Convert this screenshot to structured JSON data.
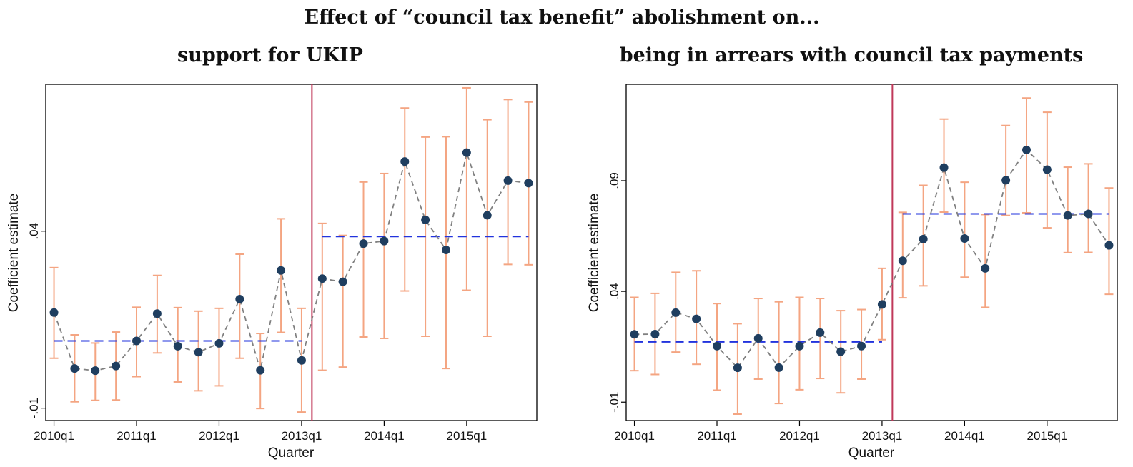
{
  "figure": {
    "title": "Effect of “council tax benefit” abolishment on..."
  },
  "chart_data": [
    {
      "type": "scatter",
      "title": "support for UKIP",
      "xlabel": "Quarter",
      "ylabel": "Coefficient estimate",
      "x_tick_labels": [
        "2010q1",
        "2011q1",
        "2012q1",
        "2013q1",
        "2014q1",
        "2015q1"
      ],
      "x_tick_values": [
        0,
        4,
        8,
        12,
        16,
        20
      ],
      "y_tick_labels": [
        "-.01",
        ".04"
      ],
      "y_tick_values": [
        -0.01,
        0.04
      ],
      "ylim": [
        -0.0135,
        0.0815
      ],
      "xlim": [
        -0.4,
        23.4
      ],
      "policy_line_x": 12.5,
      "colors": {
        "point": "#1f3e5f",
        "ci": "#f4a582",
        "connector": "#808080",
        "mean": "#2233dd",
        "vline": "#c0395a"
      },
      "series": [
        {
          "x": [
            0,
            1,
            2,
            3,
            4,
            5,
            6,
            7,
            8,
            9,
            10,
            11,
            12,
            13,
            14,
            15,
            16,
            17,
            18,
            19,
            20,
            21,
            22,
            23
          ],
          "estimate": [
            0.017,
            0.0012,
            0.0006,
            0.0019,
            0.009,
            0.0167,
            0.0075,
            0.0058,
            0.0083,
            0.0208,
            0.0007,
            0.0289,
            0.0035,
            0.0266,
            0.0257,
            0.0365,
            0.0372,
            0.0597,
            0.0432,
            0.0347,
            0.0622,
            0.0445,
            0.0543,
            0.0536
          ],
          "ci_low": [
            0.0041,
            -0.0082,
            -0.0078,
            -0.0077,
            -0.0011,
            0.0056,
            -0.0026,
            -0.0051,
            -0.0037,
            0.0041,
            -0.0101,
            0.0114,
            -0.0111,
            0.0007,
            0.0016,
            0.0101,
            0.0097,
            0.0231,
            0.0103,
            0.0012,
            0.0233,
            0.0103,
            0.0306,
            0.0305
          ],
          "ci_high": [
            0.0297,
            0.0107,
            0.0084,
            0.0115,
            0.0185,
            0.0275,
            0.0184,
            0.0174,
            0.0182,
            0.0335,
            0.0111,
            0.0435,
            0.0182,
            0.0422,
            0.0388,
            0.0539,
            0.0563,
            0.0748,
            0.0666,
            0.0667,
            0.0805,
            0.0715,
            0.0772,
            0.0765
          ],
          "pre_mean": 0.009,
          "post_mean": 0.0385
        }
      ]
    },
    {
      "type": "scatter",
      "title": "being in arrears with council tax payments",
      "xlabel": "Quarter",
      "ylabel": "Coefficient estimate",
      "x_tick_labels": [
        "2010q1",
        "2011q1",
        "2012q1",
        "2013q1",
        "2014q1",
        "2015q1"
      ],
      "x_tick_values": [
        0,
        4,
        8,
        12,
        16,
        20
      ],
      "y_tick_labels": [
        "-.01",
        ".04",
        ".09"
      ],
      "y_tick_values": [
        -0.01,
        0.04,
        0.09
      ],
      "ylim": [
        -0.0183,
        0.1335
      ],
      "xlim": [
        -0.4,
        23.4
      ],
      "policy_line_x": 12.5,
      "colors": {
        "point": "#1f3e5f",
        "ci": "#f4a582",
        "connector": "#808080",
        "mean": "#2233dd",
        "vline": "#c0395a"
      },
      "series": [
        {
          "x": [
            0,
            1,
            2,
            3,
            4,
            5,
            6,
            7,
            8,
            9,
            10,
            11,
            12,
            13,
            14,
            15,
            16,
            17,
            18,
            19,
            20,
            21,
            22,
            23
          ],
          "estimate": [
            0.0206,
            0.0207,
            0.0304,
            0.0276,
            0.0153,
            0.0055,
            0.0188,
            0.0056,
            0.0153,
            0.0214,
            0.0128,
            0.0153,
            0.0341,
            0.0538,
            0.0636,
            0.0959,
            0.0639,
            0.0504,
            0.0902,
            0.1039,
            0.095,
            0.0743,
            0.075,
            0.0608
          ],
          "ci_low": [
            0.0042,
            0.0025,
            0.0126,
            0.0071,
            -0.0046,
            -0.0154,
            0.0004,
            -0.0106,
            -0.0044,
            0.0007,
            -0.0058,
            0.0004,
            0.0182,
            0.0371,
            0.0425,
            0.0758,
            0.0464,
            0.0328,
            0.0743,
            0.0755,
            0.0687,
            0.0575,
            0.0576,
            0.0387
          ],
          "ci_high": [
            0.0373,
            0.0391,
            0.0486,
            0.0493,
            0.0345,
            0.0254,
            0.0368,
            0.0353,
            0.0373,
            0.0368,
            0.0313,
            0.0318,
            0.0504,
            0.0757,
            0.0879,
            0.1178,
            0.0893,
            0.0747,
            0.1149,
            0.1273,
            0.1209,
            0.0961,
            0.0976,
            0.0867
          ],
          "pre_mean": 0.0172,
          "post_mean": 0.075
        }
      ]
    }
  ]
}
